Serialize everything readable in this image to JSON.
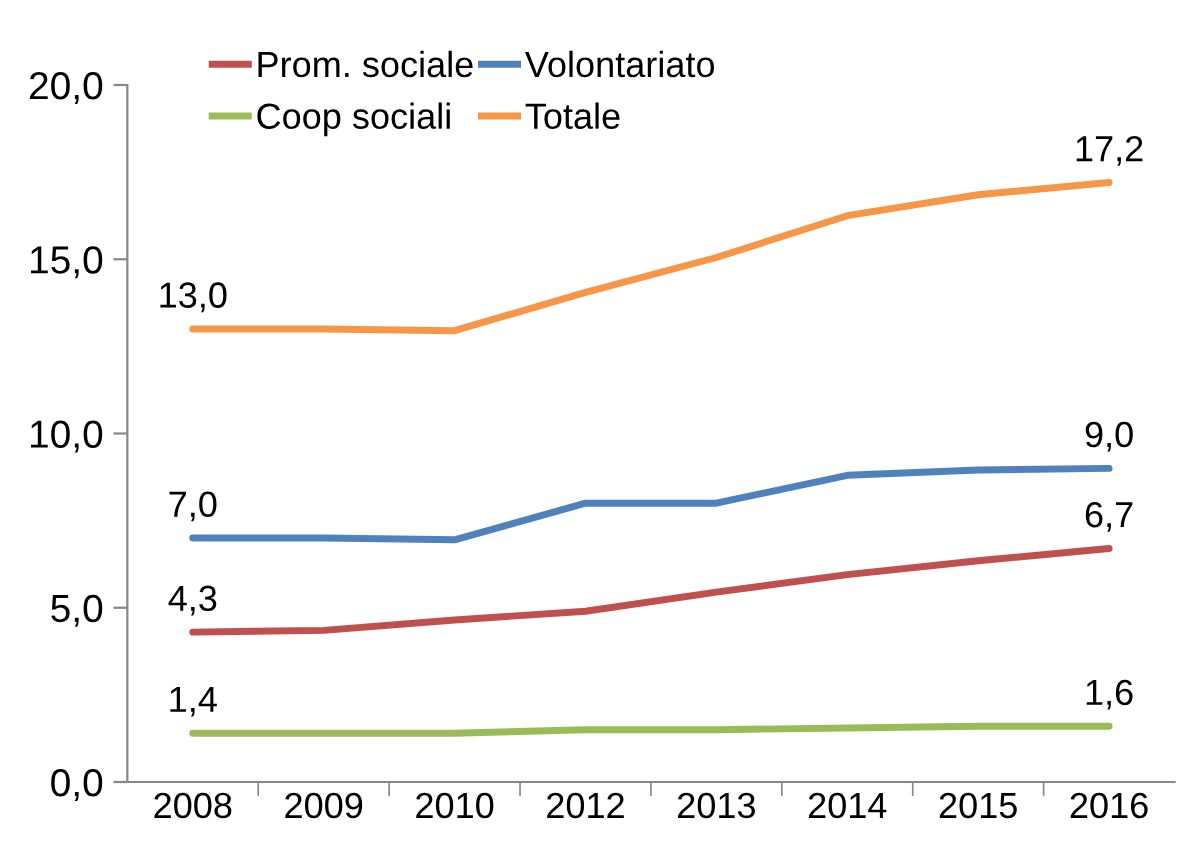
{
  "chart_data": {
    "type": "line",
    "categories": [
      "2008",
      "2009",
      "2010",
      "2012",
      "2013",
      "2014",
      "2015",
      "2016"
    ],
    "series": [
      {
        "name": "Prom. sociale",
        "color": "#c0504d",
        "values": [
          4.3,
          4.35,
          4.65,
          4.9,
          5.45,
          5.95,
          6.35,
          6.7
        ],
        "value_labels": [
          "4,3",
          null,
          null,
          null,
          null,
          null,
          null,
          "6,7"
        ]
      },
      {
        "name": "Coop sociali",
        "color": "#9bbb59",
        "values": [
          1.4,
          1.4,
          1.4,
          1.5,
          1.5,
          1.55,
          1.6,
          1.6
        ],
        "value_labels": [
          "1,4",
          null,
          null,
          null,
          null,
          null,
          null,
          "1,6"
        ]
      },
      {
        "name": "Volontariato",
        "color": "#4f81bd",
        "values": [
          7.0,
          7.0,
          6.95,
          8.0,
          8.0,
          8.8,
          8.95,
          9.0
        ],
        "value_labels": [
          "7,0",
          null,
          null,
          null,
          null,
          null,
          null,
          "9,0"
        ]
      },
      {
        "name": "Totale",
        "color": "#f79646",
        "values": [
          13.0,
          13.0,
          12.95,
          14.05,
          15.05,
          16.25,
          16.85,
          17.2
        ],
        "value_labels": [
          "13,0",
          null,
          null,
          null,
          null,
          null,
          null,
          "17,2"
        ]
      }
    ],
    "ylim": [
      0,
      20
    ],
    "yticks": [
      {
        "value": 0,
        "label": "0,0"
      },
      {
        "value": 5,
        "label": "5,0"
      },
      {
        "value": 10,
        "label": "10,0"
      },
      {
        "value": 15,
        "label": "15,0"
      },
      {
        "value": 20,
        "label": "20,0"
      }
    ],
    "grid": false,
    "legend": "top",
    "marker": "none",
    "line_style": "solid"
  }
}
